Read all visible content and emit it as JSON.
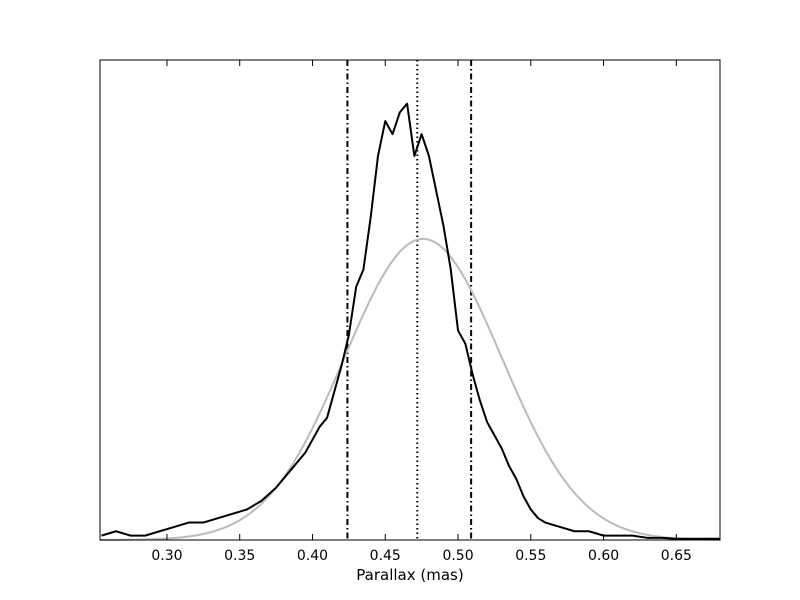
{
  "chart_data": {
    "type": "line",
    "title": "",
    "xlabel": "Parallax (mas)",
    "ylabel": "",
    "xlim": [
      0.254,
      0.68
    ],
    "ylim": [
      0,
      1.1
    ],
    "x_ticks": [
      "0.30",
      "0.35",
      "0.40",
      "0.45",
      "0.50",
      "0.55",
      "0.60",
      "0.65"
    ],
    "x_tick_values": [
      0.3,
      0.35,
      0.4,
      0.45,
      0.5,
      0.55,
      0.6,
      0.65
    ],
    "y_ticks_visible": false,
    "grid": false,
    "legend": "none",
    "series": [
      {
        "style": "histogram-line",
        "color": "#000000",
        "x": [
          0.255,
          0.265,
          0.275,
          0.285,
          0.295,
          0.305,
          0.315,
          0.325,
          0.335,
          0.345,
          0.355,
          0.365,
          0.375,
          0.385,
          0.395,
          0.405,
          0.41,
          0.415,
          0.42,
          0.425,
          0.43,
          0.435,
          0.44,
          0.445,
          0.45,
          0.455,
          0.46,
          0.465,
          0.47,
          0.475,
          0.48,
          0.485,
          0.49,
          0.495,
          0.5,
          0.505,
          0.51,
          0.515,
          0.52,
          0.525,
          0.53,
          0.535,
          0.54,
          0.545,
          0.55,
          0.555,
          0.56,
          0.57,
          0.58,
          0.59,
          0.6,
          0.61,
          0.62,
          0.63,
          0.64,
          0.65,
          0.66,
          0.67,
          0.68
        ],
        "y": [
          0.01,
          0.02,
          0.01,
          0.01,
          0.02,
          0.03,
          0.04,
          0.04,
          0.05,
          0.06,
          0.07,
          0.09,
          0.12,
          0.16,
          0.2,
          0.26,
          0.28,
          0.34,
          0.4,
          0.47,
          0.58,
          0.62,
          0.74,
          0.88,
          0.96,
          0.93,
          0.98,
          1.0,
          0.88,
          0.93,
          0.88,
          0.8,
          0.72,
          0.62,
          0.48,
          0.45,
          0.38,
          0.32,
          0.27,
          0.24,
          0.21,
          0.17,
          0.14,
          0.1,
          0.07,
          0.05,
          0.04,
          0.03,
          0.02,
          0.02,
          0.01,
          0.01,
          0.01,
          0.005,
          0.005,
          0.003,
          0.003,
          0.003,
          0.003
        ]
      },
      {
        "style": "gaussian-fit",
        "color": "#bbbbbb",
        "mean": 0.476,
        "sigma": 0.054,
        "peak": 0.69
      }
    ],
    "vlines": [
      {
        "x": 0.424,
        "style": "dashdot"
      },
      {
        "x": 0.472,
        "style": "dotted"
      },
      {
        "x": 0.509,
        "style": "dashdot"
      }
    ]
  }
}
